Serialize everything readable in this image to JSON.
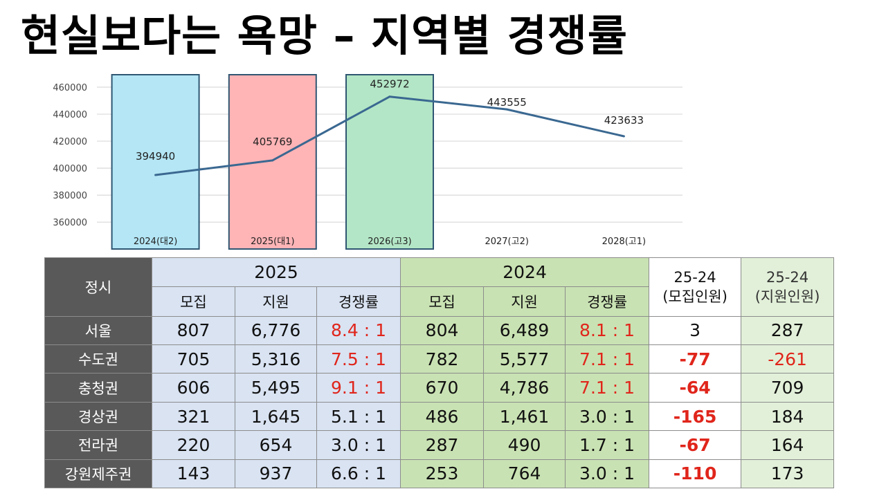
{
  "title": "현실보다는 욕망 – 지역별 경쟁률",
  "chart_data": {
    "type": "line",
    "categories": [
      "2024(대2)",
      "2025(대1)",
      "2026(고3)",
      "2027(고2)",
      "2028(고1)"
    ],
    "values": [
      394940,
      405769,
      452972,
      443555,
      423633
    ],
    "value_labels": [
      "394940",
      "405769",
      "452972",
      "443555",
      "423633"
    ],
    "yticks": [
      460000,
      440000,
      420000,
      400000,
      380000,
      360000
    ],
    "ylim": [
      350000,
      470000
    ],
    "grid": true,
    "highlight_colors": [
      "#b4e6f5",
      "#ffb4b6",
      "#b3e6c6"
    ],
    "line_color": "#3a6891"
  },
  "table": {
    "corner": "정시",
    "groups": [
      {
        "label": "2025",
        "sub": [
          "모집",
          "지원",
          "경쟁률"
        ]
      },
      {
        "label": "2024",
        "sub": [
          "모집",
          "지원",
          "경쟁률"
        ]
      }
    ],
    "diff_headers": [
      {
        "line1": "25-24",
        "line2": "(모집인원)"
      },
      {
        "line1": "25-24",
        "line2": "(지원인원)"
      }
    ],
    "rows": [
      {
        "region": "서울",
        "y2025": [
          "807",
          "6,776",
          "8.4 : 1"
        ],
        "y2024": [
          "804",
          "6,489",
          "8.1 : 1"
        ],
        "diff1": "3",
        "diff2": "287"
      },
      {
        "region": "수도권",
        "y2025": [
          "705",
          "5,316",
          "7.5 : 1"
        ],
        "y2024": [
          "782",
          "5,577",
          "7.1 : 1"
        ],
        "diff1": "-77",
        "diff2": "-261"
      },
      {
        "region": "충청권",
        "y2025": [
          "606",
          "5,495",
          "9.1 : 1"
        ],
        "y2024": [
          "670",
          "4,786",
          "7.1 : 1"
        ],
        "diff1": "-64",
        "diff2": "709"
      },
      {
        "region": "경상권",
        "y2025": [
          "321",
          "1,645",
          "5.1 : 1"
        ],
        "y2024": [
          "486",
          "1,461",
          "3.0 : 1"
        ],
        "diff1": "-165",
        "diff2": "184"
      },
      {
        "region": "전라권",
        "y2025": [
          "220",
          "654",
          "3.0 : 1"
        ],
        "y2024": [
          "287",
          "490",
          "1.7 : 1"
        ],
        "diff1": "-67",
        "diff2": "164"
      },
      {
        "region": "강원제주권",
        "y2025": [
          "143",
          "937",
          "6.6 : 1"
        ],
        "y2024": [
          "253",
          "764",
          "3.0 : 1"
        ],
        "diff1": "-110",
        "diff2": "173"
      }
    ],
    "colors": {
      "header_dark": "#595959",
      "col2025": "#d9e3f2",
      "col2024": "#c9e2b3",
      "diff1": "#ffffff",
      "diff2": "#e2f0d9",
      "negative": "#e0251b"
    }
  }
}
